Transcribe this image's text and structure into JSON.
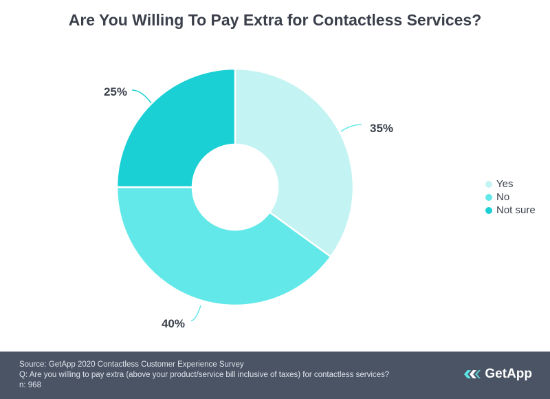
{
  "chart_data": {
    "type": "pie",
    "title": "Are You Willing To Pay Extra for Contactless Services?",
    "slices": [
      {
        "label": "Yes",
        "value": 35,
        "display": "35%",
        "color": "#c3f3f2"
      },
      {
        "label": "No",
        "value": 40,
        "display": "40%",
        "color": "#62e8e8"
      },
      {
        "label": "Not sure",
        "value": 25,
        "display": "25%",
        "color": "#1ad0d4"
      }
    ],
    "legend_position": "right",
    "donut": true
  },
  "footer": {
    "source": "Source: GetApp 2020 Contactless Customer Experience Survey",
    "question": "Q: Are you willing to pay extra (above your product/service bill inclusive of taxes) for contactless services?",
    "n": "n: 968"
  },
  "logo": {
    "text": "GetApp",
    "icon": "getapp-chevrons-icon"
  }
}
